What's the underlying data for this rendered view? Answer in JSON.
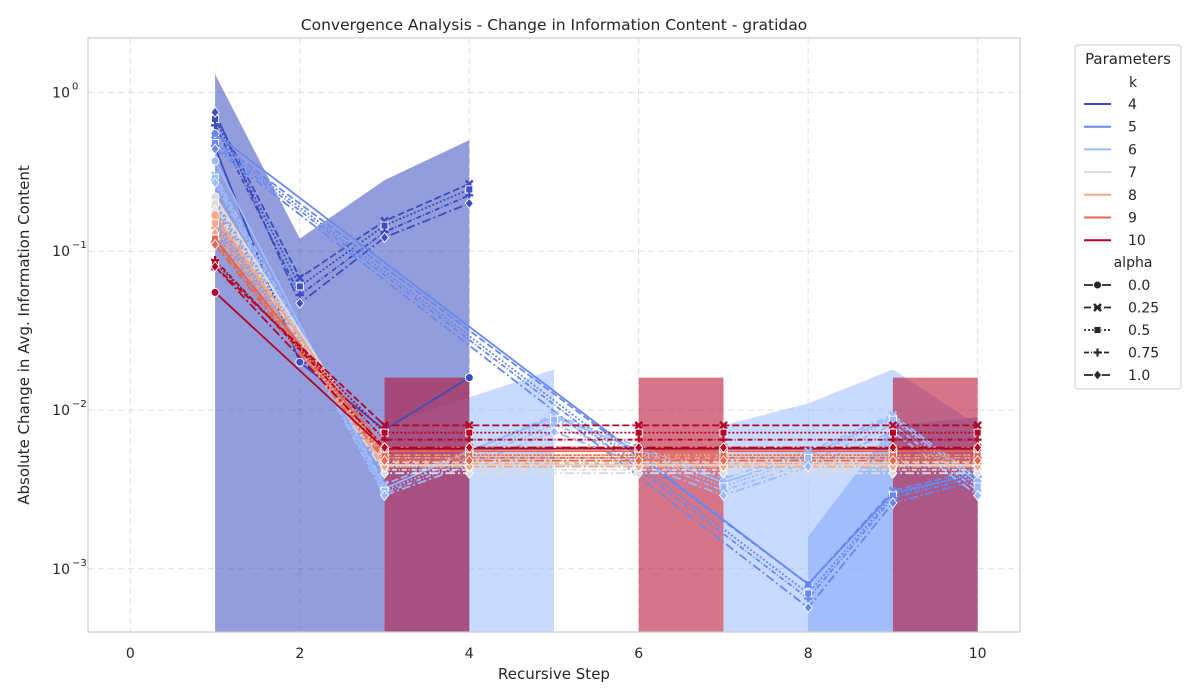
{
  "chart_data": {
    "type": "line",
    "title": "Convergence Analysis - Change in Information Content - gratidao",
    "xlabel": "Recursive Step",
    "ylabel": "Absolute Change in Avg. Information Content",
    "x_ticks": [
      0,
      2,
      4,
      6,
      8,
      10
    ],
    "x_tick_labels": [
      "0",
      "2",
      "4",
      "6",
      "8",
      "10"
    ],
    "y_scale": "log",
    "y_ticks": [
      0.001,
      0.01,
      0.1,
      1
    ],
    "y_tick_labels": [
      "10",
      "10",
      "10",
      "10"
    ],
    "y_tick_exponents": [
      "−3",
      "−2",
      "−1",
      "0"
    ],
    "xlim": [
      -0.5,
      10.5
    ],
    "ylim": [
      0.0004,
      2.2
    ],
    "grid": true,
    "legend": {
      "title": "Parameters",
      "placement": "outside-top-right",
      "k_title": "k",
      "k_entries": [
        "4",
        "5",
        "6",
        "7",
        "8",
        "9",
        "10"
      ],
      "alpha_title": "alpha",
      "alpha_entries": [
        "0.0",
        "0.25",
        "0.5",
        "0.75",
        "1.0"
      ]
    },
    "k_colors": [
      "#3b4cc0",
      "#6788ee",
      "#9abbff",
      "#dddcdc",
      "#f7a889",
      "#e26952",
      "#b40426"
    ],
    "alpha_dashes": [
      "",
      "7,3",
      "2,2",
      "5,2,1,2",
      "9,3,2,3"
    ],
    "alpha_markers": [
      "circle",
      "x",
      "square",
      "plus",
      "diamond"
    ],
    "series": [
      {
        "k": "4",
        "alpha": "0.0",
        "x": [
          1,
          2,
          3,
          4
        ],
        "y": [
          0.45,
          0.02,
          0.0075,
          0.016
        ],
        "band_low": [
          0.0004,
          0.0004,
          0.0004,
          0.0004
        ],
        "band_high": [
          1.3,
          0.12,
          0.28,
          0.5
        ]
      },
      {
        "k": "4",
        "alpha": "0.25",
        "x": [
          1,
          2,
          3,
          4
        ],
        "y": [
          0.72,
          0.068,
          0.155,
          0.265
        ]
      },
      {
        "k": "4",
        "alpha": "0.5",
        "x": [
          1,
          2,
          3,
          4
        ],
        "y": [
          0.68,
          0.06,
          0.145,
          0.245
        ]
      },
      {
        "k": "4",
        "alpha": "0.75",
        "x": [
          1,
          2,
          3,
          4
        ],
        "y": [
          0.62,
          0.053,
          0.132,
          0.225
        ]
      },
      {
        "k": "4",
        "alpha": "1.0",
        "x": [
          1,
          2,
          3,
          4
        ],
        "y": [
          0.75,
          0.047,
          0.122,
          0.2
        ]
      },
      {
        "k": "5",
        "alpha": "0.0",
        "x": [
          1,
          8,
          9,
          10
        ],
        "y": [
          0.55,
          0.0008,
          0.003,
          0.004
        ],
        "band_low": [
          0.0004,
          0.0004,
          0.0004,
          0.0004
        ],
        "band_high": [
          1.0,
          0.0016,
          0.008,
          0.009
        ]
      },
      {
        "k": "5",
        "alpha": "0.25",
        "x": [
          1,
          8,
          9,
          10
        ],
        "y": [
          0.5,
          0.0008,
          0.0031,
          0.0042
        ]
      },
      {
        "k": "5",
        "alpha": "0.5",
        "x": [
          1,
          8,
          9,
          10
        ],
        "y": [
          0.48,
          0.0007,
          0.0029,
          0.004
        ]
      },
      {
        "k": "5",
        "alpha": "0.75",
        "x": [
          1,
          8,
          9,
          10
        ],
        "y": [
          0.46,
          0.00065,
          0.0028,
          0.0038
        ]
      },
      {
        "k": "5",
        "alpha": "1.0",
        "x": [
          1,
          8,
          9,
          10
        ],
        "y": [
          0.44,
          0.00057,
          0.0026,
          0.0036
        ]
      },
      {
        "k": "6",
        "alpha": "0.0",
        "x": [
          1,
          3,
          4,
          5,
          7,
          8,
          9,
          10
        ],
        "y": [
          0.37,
          0.0032,
          0.0055,
          0.009,
          0.0035,
          0.0052,
          0.009,
          0.0035
        ],
        "band_low": [
          0.0004,
          0.0004,
          0.0004,
          0.0004,
          0.0004,
          0.0004,
          0.0004,
          0.0004
        ],
        "band_high": [
          0.7,
          0.008,
          0.012,
          0.018,
          0.008,
          0.011,
          0.018,
          0.008
        ]
      },
      {
        "k": "6",
        "alpha": "0.25",
        "x": [
          1,
          3,
          4,
          5,
          7,
          8,
          9,
          10
        ],
        "y": [
          0.3,
          0.0034,
          0.0055,
          0.0093,
          0.0037,
          0.0055,
          0.0093,
          0.0037
        ]
      },
      {
        "k": "6",
        "alpha": "0.5",
        "x": [
          1,
          3,
          4,
          5,
          7,
          8,
          9,
          10
        ],
        "y": [
          0.29,
          0.0031,
          0.0051,
          0.0087,
          0.0033,
          0.005,
          0.0087,
          0.0033
        ]
      },
      {
        "k": "6",
        "alpha": "0.75",
        "x": [
          1,
          3,
          4,
          5,
          7,
          8,
          9,
          10
        ],
        "y": [
          0.28,
          0.003,
          0.0048,
          0.0081,
          0.0031,
          0.0047,
          0.0081,
          0.0031
        ]
      },
      {
        "k": "6",
        "alpha": "1.0",
        "x": [
          1,
          3,
          4,
          5,
          7,
          8,
          9,
          10
        ],
        "y": [
          0.27,
          0.0029,
          0.0045,
          0.0073,
          0.0029,
          0.0044,
          0.0073,
          0.0029
        ]
      },
      {
        "k": "7",
        "alpha": "0.0",
        "x": [
          1,
          3,
          4,
          6,
          7,
          9,
          10
        ],
        "y": [
          0.22,
          0.0045,
          0.0045,
          0.0045,
          0.0045,
          0.0045,
          0.0045
        ]
      },
      {
        "k": "7",
        "alpha": "0.25",
        "x": [
          1,
          3,
          4,
          6,
          7,
          9,
          10
        ],
        "y": [
          0.21,
          0.0047,
          0.0047,
          0.0047,
          0.0047,
          0.0047,
          0.0047
        ]
      },
      {
        "k": "7",
        "alpha": "0.5",
        "x": [
          1,
          3,
          4,
          6,
          7,
          9,
          10
        ],
        "y": [
          0.2,
          0.0044,
          0.0044,
          0.0044,
          0.0044,
          0.0044,
          0.0044
        ]
      },
      {
        "k": "7",
        "alpha": "0.75",
        "x": [
          1,
          3,
          4,
          6,
          7,
          9,
          10
        ],
        "y": [
          0.19,
          0.0042,
          0.0042,
          0.0042,
          0.0042,
          0.0042,
          0.0042
        ]
      },
      {
        "k": "7",
        "alpha": "1.0",
        "x": [
          1,
          3,
          4,
          6,
          7,
          9,
          10
        ],
        "y": [
          0.18,
          0.004,
          0.004,
          0.004,
          0.004,
          0.004,
          0.004
        ]
      },
      {
        "k": "8",
        "alpha": "0.0",
        "x": [
          1,
          3,
          4,
          6,
          7,
          9,
          10
        ],
        "y": [
          0.17,
          0.005,
          0.005,
          0.005,
          0.005,
          0.005,
          0.005
        ]
      },
      {
        "k": "8",
        "alpha": "0.25",
        "x": [
          1,
          3,
          4,
          6,
          7,
          9,
          10
        ],
        "y": [
          0.16,
          0.0052,
          0.0052,
          0.0052,
          0.0052,
          0.0052,
          0.0052
        ]
      },
      {
        "k": "8",
        "alpha": "0.5",
        "x": [
          1,
          3,
          4,
          6,
          7,
          9,
          10
        ],
        "y": [
          0.15,
          0.0048,
          0.0048,
          0.0048,
          0.0048,
          0.0048,
          0.0048
        ]
      },
      {
        "k": "8",
        "alpha": "0.75",
        "x": [
          1,
          3,
          4,
          6,
          7,
          9,
          10
        ],
        "y": [
          0.14,
          0.0046,
          0.0046,
          0.0046,
          0.0046,
          0.0046,
          0.0046
        ]
      },
      {
        "k": "8",
        "alpha": "1.0",
        "x": [
          1,
          3,
          4,
          6,
          7,
          9,
          10
        ],
        "y": [
          0.13,
          0.0044,
          0.0044,
          0.0044,
          0.0044,
          0.0044,
          0.0044
        ]
      },
      {
        "k": "9",
        "alpha": "0.0",
        "x": [
          1,
          3,
          4,
          6,
          7,
          9,
          10
        ],
        "y": [
          0.12,
          0.0055,
          0.0055,
          0.0055,
          0.0055,
          0.0055,
          0.0055
        ]
      },
      {
        "k": "9",
        "alpha": "0.25",
        "x": [
          1,
          3,
          4,
          6,
          7,
          9,
          10
        ],
        "y": [
          0.118,
          0.0058,
          0.0058,
          0.0058,
          0.0058,
          0.0058,
          0.0058
        ]
      },
      {
        "k": "9",
        "alpha": "0.5",
        "x": [
          1,
          3,
          4,
          6,
          7,
          9,
          10
        ],
        "y": [
          0.12,
          0.0052,
          0.0052,
          0.0052,
          0.0052,
          0.0052,
          0.0052
        ]
      },
      {
        "k": "9",
        "alpha": "0.75",
        "x": [
          1,
          3,
          4,
          6,
          7,
          9,
          10
        ],
        "y": [
          0.115,
          0.005,
          0.005,
          0.005,
          0.005,
          0.005,
          0.005
        ]
      },
      {
        "k": "9",
        "alpha": "1.0",
        "x": [
          1,
          3,
          4,
          6,
          7,
          9,
          10
        ],
        "y": [
          0.11,
          0.0048,
          0.0048,
          0.0048,
          0.0048,
          0.0048,
          0.0048
        ]
      },
      {
        "k": "10",
        "alpha": "0.0",
        "x": [
          1,
          3,
          4,
          6,
          7,
          9,
          10
        ],
        "y": [
          0.055,
          0.0057,
          0.0057,
          0.0057,
          0.0057,
          0.0057,
          0.0057
        ],
        "band_low": [
          0.0004,
          0.0004,
          0.0004,
          0.0004,
          0.0004,
          0.0004,
          0.0004
        ],
        "band_high": [
          0.06,
          0.016,
          0.016,
          0.016,
          0.016,
          0.016,
          0.016
        ]
      },
      {
        "k": "10",
        "alpha": "0.25",
        "x": [
          1,
          3,
          4,
          6,
          7,
          9,
          10
        ],
        "y": [
          0.08,
          0.008,
          0.008,
          0.008,
          0.008,
          0.008,
          0.008
        ]
      },
      {
        "k": "10",
        "alpha": "0.5",
        "x": [
          1,
          3,
          4,
          6,
          7,
          9,
          10
        ],
        "y": [
          0.085,
          0.0072,
          0.0072,
          0.0072,
          0.0072,
          0.0072,
          0.0072
        ]
      },
      {
        "k": "10",
        "alpha": "0.75",
        "x": [
          1,
          3,
          4,
          6,
          7,
          9,
          10
        ],
        "y": [
          0.088,
          0.0065,
          0.0065,
          0.0065,
          0.0065,
          0.0065,
          0.0065
        ]
      },
      {
        "k": "10",
        "alpha": "1.0",
        "x": [
          1,
          3,
          4,
          6,
          7,
          9,
          10
        ],
        "y": [
          0.08,
          0.0058,
          0.0058,
          0.0058,
          0.0058,
          0.0058,
          0.0058
        ]
      }
    ]
  }
}
